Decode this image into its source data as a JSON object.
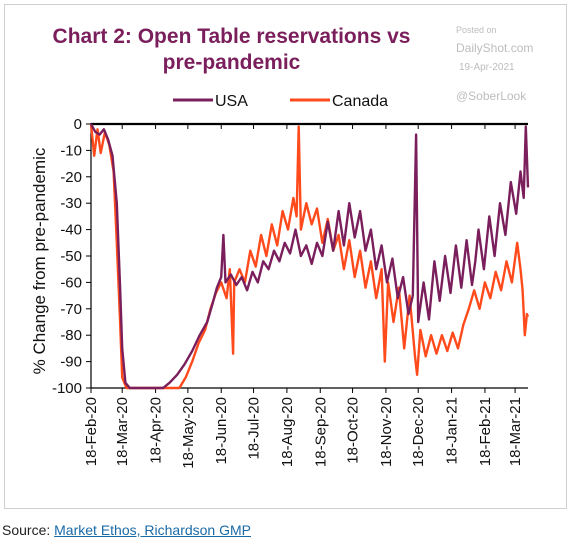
{
  "chart_data": {
    "type": "line",
    "title": "Chart 2: Open Table reservations vs pre-pandemic",
    "title_line1": "Chart 2: Open Table reservations vs",
    "title_line2": "pre-pandemic",
    "ylabel": "% Change from pre-pandemic",
    "xlabel": "",
    "ylim": [
      -100,
      0
    ],
    "yticks": [
      0,
      -10,
      -20,
      -30,
      -40,
      -50,
      -60,
      -70,
      -80,
      -90,
      -100
    ],
    "xticks": [
      "18-Feb-20",
      "18-Mar-20",
      "18-Apr-20",
      "18-May-20",
      "18-Jun-20",
      "18-Jul-20",
      "18-Aug-20",
      "18-Sep-20",
      "18-Oct-20",
      "18-Nov-20",
      "18-Dec-20",
      "18-Jan-21",
      "18-Feb-21",
      "18-Mar-21"
    ],
    "legend_position": "top",
    "series": [
      {
        "name": "USA",
        "color": "#7a1f5c",
        "points": [
          [
            "18-Feb-20",
            0
          ],
          [
            "22-Feb-20",
            -3
          ],
          [
            "26-Feb-20",
            -4
          ],
          [
            "1-Mar-20",
            -2
          ],
          [
            "5-Mar-20",
            -6
          ],
          [
            "9-Mar-20",
            -12
          ],
          [
            "13-Mar-20",
            -30
          ],
          [
            "16-Mar-20",
            -62
          ],
          [
            "18-Mar-20",
            -85
          ],
          [
            "21-Mar-20",
            -98
          ],
          [
            "25-Mar-20",
            -100
          ],
          [
            "1-Apr-20",
            -100
          ],
          [
            "15-Apr-20",
            -100
          ],
          [
            "25-Apr-20",
            -100
          ],
          [
            "1-May-20",
            -98
          ],
          [
            "8-May-20",
            -95
          ],
          [
            "15-May-20",
            -91
          ],
          [
            "22-May-20",
            -86
          ],
          [
            "29-May-20",
            -80
          ],
          [
            "5-Jun-20",
            -75
          ],
          [
            "10-Jun-20",
            -68
          ],
          [
            "14-Jun-20",
            -62
          ],
          [
            "18-Jun-20",
            -58
          ],
          [
            "20-Jun-20",
            -42
          ],
          [
            "22-Jun-20",
            -60
          ],
          [
            "27-Jun-20",
            -57
          ],
          [
            "2-Jul-20",
            -61
          ],
          [
            "7-Jul-20",
            -58
          ],
          [
            "12-Jul-20",
            -63
          ],
          [
            "17-Jul-20",
            -56
          ],
          [
            "22-Jul-20",
            -60
          ],
          [
            "27-Jul-20",
            -52
          ],
          [
            "1-Aug-20",
            -55
          ],
          [
            "6-Aug-20",
            -48
          ],
          [
            "11-Aug-20",
            -52
          ],
          [
            "16-Aug-20",
            -45
          ],
          [
            "21-Aug-20",
            -49
          ],
          [
            "26-Aug-20",
            -40
          ],
          [
            "31-Aug-20",
            -50
          ],
          [
            "5-Sep-20",
            -46
          ],
          [
            "10-Sep-20",
            -53
          ],
          [
            "15-Sep-20",
            -45
          ],
          [
            "20-Sep-20",
            -50
          ],
          [
            "25-Sep-20",
            -37
          ],
          [
            "30-Sep-20",
            -48
          ],
          [
            "5-Oct-20",
            -33
          ],
          [
            "10-Oct-20",
            -46
          ],
          [
            "15-Oct-20",
            -30
          ],
          [
            "20-Oct-20",
            -43
          ],
          [
            "25-Oct-20",
            -33
          ],
          [
            "30-Oct-20",
            -48
          ],
          [
            "4-Nov-20",
            -40
          ],
          [
            "9-Nov-20",
            -55
          ],
          [
            "14-Nov-20",
            -46
          ],
          [
            "19-Nov-20",
            -60
          ],
          [
            "24-Nov-20",
            -51
          ],
          [
            "29-Nov-20",
            -66
          ],
          [
            "4-Dec-20",
            -58
          ],
          [
            "9-Dec-20",
            -72
          ],
          [
            "13-Dec-20",
            -65
          ],
          [
            "16-Dec-20",
            -4
          ],
          [
            "18-Dec-20",
            -75
          ],
          [
            "23-Dec-20",
            -60
          ],
          [
            "28-Dec-20",
            -74
          ],
          [
            "2-Jan-21",
            -52
          ],
          [
            "7-Jan-21",
            -67
          ],
          [
            "12-Jan-21",
            -50
          ],
          [
            "17-Jan-21",
            -64
          ],
          [
            "22-Jan-21",
            -46
          ],
          [
            "27-Jan-21",
            -62
          ],
          [
            "1-Feb-21",
            -44
          ],
          [
            "6-Feb-21",
            -61
          ],
          [
            "9-Feb-21",
            -52
          ],
          [
            "12-Feb-21",
            -40
          ],
          [
            "17-Feb-21",
            -55
          ],
          [
            "22-Feb-21",
            -35
          ],
          [
            "27-Feb-21",
            -50
          ],
          [
            "4-Mar-21",
            -30
          ],
          [
            "9-Mar-21",
            -42
          ],
          [
            "14-Mar-21",
            -22
          ],
          [
            "19-Mar-21",
            -34
          ],
          [
            "23-Mar-21",
            -18
          ],
          [
            "26-Mar-21",
            -28
          ],
          [
            "28-Mar-21",
            -1
          ],
          [
            "30-Mar-21",
            -24
          ]
        ]
      },
      {
        "name": "Canada",
        "color": "#ff4a1c",
        "points": [
          [
            "18-Feb-20",
            0
          ],
          [
            "21-Feb-20",
            -12
          ],
          [
            "24-Feb-20",
            -2
          ],
          [
            "27-Feb-20",
            -11
          ],
          [
            "2-Mar-20",
            -3
          ],
          [
            "6-Mar-20",
            -8
          ],
          [
            "10-Mar-20",
            -18
          ],
          [
            "13-Mar-20",
            -45
          ],
          [
            "16-Mar-20",
            -75
          ],
          [
            "18-Mar-20",
            -96
          ],
          [
            "22-Mar-20",
            -100
          ],
          [
            "1-Apr-20",
            -100
          ],
          [
            "20-Apr-20",
            -100
          ],
          [
            "10-May-20",
            -100
          ],
          [
            "16-May-20",
            -96
          ],
          [
            "22-May-20",
            -90
          ],
          [
            "28-May-20",
            -83
          ],
          [
            "3-Jun-20",
            -78
          ],
          [
            "8-Jun-20",
            -70
          ],
          [
            "13-Jun-20",
            -64
          ],
          [
            "18-Jun-20",
            -60
          ],
          [
            "23-Jun-20",
            -66
          ],
          [
            "26-Jun-20",
            -55
          ],
          [
            "29-Jun-20",
            -87
          ],
          [
            "30-Jun-20",
            -60
          ],
          [
            "5-Jul-20",
            -55
          ],
          [
            "10-Jul-20",
            -60
          ],
          [
            "15-Jul-20",
            -48
          ],
          [
            "20-Jul-20",
            -54
          ],
          [
            "25-Jul-20",
            -42
          ],
          [
            "30-Jul-20",
            -50
          ],
          [
            "4-Aug-20",
            -38
          ],
          [
            "9-Aug-20",
            -46
          ],
          [
            "14-Aug-20",
            -33
          ],
          [
            "19-Aug-20",
            -40
          ],
          [
            "24-Aug-20",
            -28
          ],
          [
            "27-Aug-20",
            -35
          ],
          [
            "29-Aug-20",
            -1
          ],
          [
            "31-Aug-20",
            -40
          ],
          [
            "5-Sep-20",
            -30
          ],
          [
            "10-Sep-20",
            -38
          ],
          [
            "15-Sep-20",
            -32
          ],
          [
            "20-Sep-20",
            -45
          ],
          [
            "25-Sep-20",
            -36
          ],
          [
            "30-Sep-20",
            -48
          ],
          [
            "5-Oct-20",
            -42
          ],
          [
            "10-Oct-20",
            -55
          ],
          [
            "15-Oct-20",
            -44
          ],
          [
            "20-Oct-20",
            -58
          ],
          [
            "25-Oct-20",
            -48
          ],
          [
            "30-Oct-20",
            -62
          ],
          [
            "4-Nov-20",
            -52
          ],
          [
            "9-Nov-20",
            -66
          ],
          [
            "14-Nov-20",
            -55
          ],
          [
            "17-Nov-20",
            -90
          ],
          [
            "20-Nov-20",
            -60
          ],
          [
            "25-Nov-20",
            -75
          ],
          [
            "30-Nov-20",
            -62
          ],
          [
            "5-Dec-20",
            -85
          ],
          [
            "10-Dec-20",
            -65
          ],
          [
            "15-Dec-20",
            -88
          ],
          [
            "17-Dec-20",
            -95
          ],
          [
            "20-Dec-20",
            -78
          ],
          [
            "25-Dec-20",
            -88
          ],
          [
            "30-Dec-20",
            -80
          ],
          [
            "4-Jan-21",
            -87
          ],
          [
            "9-Jan-21",
            -80
          ],
          [
            "14-Jan-21",
            -86
          ],
          [
            "19-Jan-21",
            -79
          ],
          [
            "24-Jan-21",
            -85
          ],
          [
            "29-Jan-21",
            -76
          ],
          [
            "3-Feb-21",
            -70
          ],
          [
            "8-Feb-21",
            -63
          ],
          [
            "13-Feb-21",
            -70
          ],
          [
            "18-Feb-21",
            -60
          ],
          [
            "23-Feb-21",
            -66
          ],
          [
            "28-Feb-21",
            -56
          ],
          [
            "5-Mar-21",
            -63
          ],
          [
            "10-Mar-21",
            -52
          ],
          [
            "15-Mar-21",
            -60
          ],
          [
            "20-Mar-21",
            -45
          ],
          [
            "23-Mar-21",
            -55
          ],
          [
            "25-Mar-21",
            -63
          ],
          [
            "27-Mar-21",
            -80
          ],
          [
            "29-Mar-21",
            -72
          ],
          [
            "30-Mar-21",
            -73
          ]
        ]
      }
    ]
  },
  "watermark": {
    "line1": "Posted on",
    "line2": "DailyShot.com",
    "line3": "19-Apr-2021",
    "line4": "@SoberLook"
  },
  "source": {
    "prefix": "Source:",
    "link": "Market Ethos, Richardson GMP"
  }
}
